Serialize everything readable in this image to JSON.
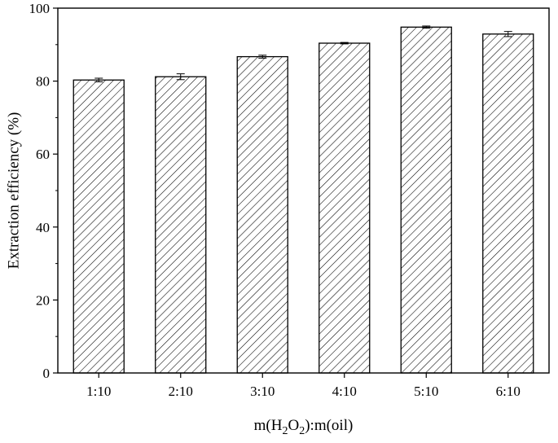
{
  "chart_data": {
    "type": "bar",
    "categories": [
      "1:10",
      "2:10",
      "3:10",
      "4:10",
      "5:10",
      "6:10"
    ],
    "values": [
      80.3,
      81.2,
      86.7,
      90.4,
      94.8,
      92.9
    ],
    "errors": [
      0.5,
      0.8,
      0.4,
      0.2,
      0.3,
      0.7
    ],
    "xlabel": "m(H2O2):m(oil)",
    "xlabel_parts": {
      "pre": "m(H",
      "sub1": "2",
      "mid": "O",
      "sub2": "2",
      "post": "):m(oil)"
    },
    "ylabel": "Extraction efficiency (%)",
    "ylim": [
      0,
      100
    ],
    "yticks": [
      0,
      20,
      40,
      60,
      80,
      100
    ],
    "bar_fill": "hatched",
    "bar_color": "#000000",
    "grid": false,
    "legend": "none"
  }
}
